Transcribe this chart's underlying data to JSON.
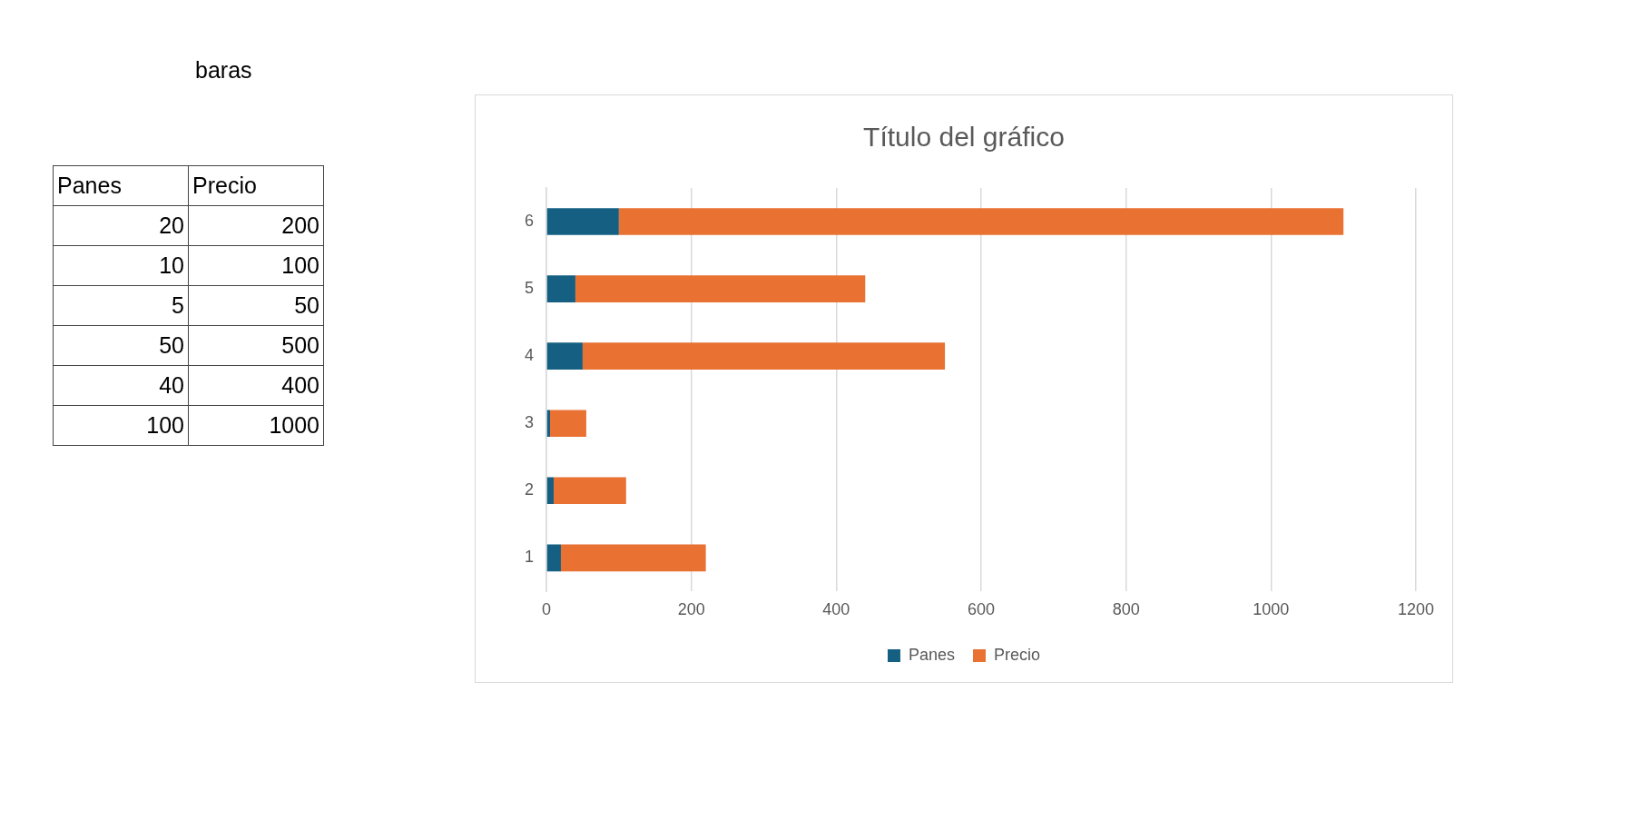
{
  "chart_data": {
    "type": "bar",
    "orientation": "horizontal",
    "stacked": true,
    "title": "Título del gráfico",
    "categories": [
      "6",
      "5",
      "4",
      "3",
      "2",
      "1"
    ],
    "series": [
      {
        "name": "Panes",
        "color": "#156082",
        "values": [
          100,
          40,
          50,
          5,
          10,
          20
        ]
      },
      {
        "name": "Precio",
        "color": "#e97132",
        "values": [
          1000,
          400,
          500,
          50,
          100,
          200
        ]
      }
    ],
    "xlim": [
      0,
      1200
    ],
    "xticks": [
      0,
      200,
      400,
      600,
      800,
      1000,
      1200
    ],
    "grid": "x",
    "legend": "bottom",
    "annotations": [
      "baras",
      "Panes",
      "Precio",
      "20",
      "200",
      "10",
      "100",
      "5",
      "50",
      "50",
      "500",
      "40",
      "400",
      "100",
      "1000"
    ]
  }
}
